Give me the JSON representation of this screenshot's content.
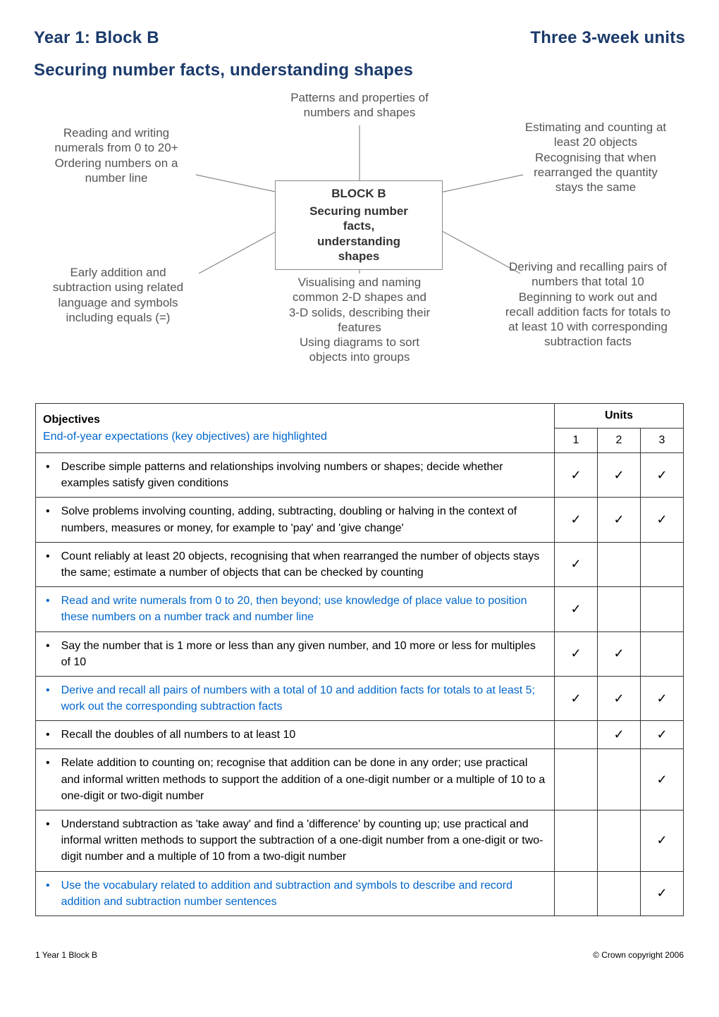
{
  "header": {
    "left": "Year 1: Block B",
    "right": "Three 3-week units"
  },
  "subtitle": "Securing number facts, understanding shapes",
  "diagram": {
    "top": "Patterns and properties of\nnumbers and shapes",
    "center_title": "BLOCK B",
    "center_sub": "Securing number facts,\nunderstanding shapes",
    "left_top": "Reading and writing\nnumerals from 0 to 20+\nOrdering numbers on a\nnumber line",
    "right_top": "Estimating and counting at\nleast 20 objects\nRecognising that when\nrearranged the quantity\nstays the same",
    "left_bottom": "Early addition and\nsubtraction using related\nlanguage and symbols\nincluding equals (=)",
    "center_bottom": "Visualising and naming\ncommon 2-D shapes and\n3-D solids, describing their\nfeatures\nUsing diagrams to sort\nobjects into groups",
    "right_bottom": "Deriving and recalling pairs of\nnumbers that total 10\nBeginning to work out and\nrecall addition facts for totals to\nat least 10 with corresponding\nsubtraction facts"
  },
  "table": {
    "head_objectives": "Objectives",
    "head_units": "Units",
    "key_row": "End-of-year expectations (key objectives) are highlighted",
    "unit_labels": [
      "1",
      "2",
      "3"
    ],
    "rows": [
      {
        "text": "Describe simple patterns and relationships involving numbers or shapes; decide whether examples satisfy given conditions",
        "blue": false,
        "checks": [
          true,
          true,
          true
        ]
      },
      {
        "text": "Solve problems involving counting, adding, subtracting, doubling or halving in the context of numbers, measures or money, for example to 'pay' and 'give change'",
        "blue": false,
        "checks": [
          true,
          true,
          true
        ]
      },
      {
        "text": "Count reliably at least 20 objects, recognising that when rearranged the number of objects stays the same; estimate a number of objects that can be checked by counting",
        "blue": false,
        "checks": [
          true,
          false,
          false
        ]
      },
      {
        "text": "Read and write numerals from 0 to 20, then beyond; use knowledge of place value to position these numbers on a number track and number line",
        "blue": true,
        "checks": [
          true,
          false,
          false
        ]
      },
      {
        "text": "Say the number that is 1 more or less than any given number, and 10 more or less for multiples of 10",
        "blue": false,
        "checks": [
          true,
          true,
          false
        ]
      },
      {
        "text": "Derive and recall all pairs of numbers with a total of 10 and addition facts for totals to at least 5; work out the corresponding subtraction facts",
        "blue": true,
        "checks": [
          true,
          true,
          true
        ]
      },
      {
        "text": "Recall the doubles of all numbers to at least 10",
        "blue": false,
        "checks": [
          false,
          true,
          true
        ]
      },
      {
        "text": "Relate addition to counting on; recognise that addition can be done in any order; use practical and informal written methods to support the addition of a one-digit number or a multiple of 10 to a one-digit or two-digit number",
        "blue": false,
        "checks": [
          false,
          false,
          true
        ]
      },
      {
        "text": "Understand subtraction as 'take away' and find a 'difference' by counting up; use practical and informal written methods to support the subtraction of a one-digit number from a one-digit or two-digit number and a multiple of 10 from a two-digit number",
        "blue": false,
        "checks": [
          false,
          false,
          true
        ]
      },
      {
        "text": "Use the vocabulary related to addition and subtraction and symbols to describe and record addition and subtraction number sentences",
        "blue": true,
        "checks": [
          false,
          false,
          true
        ]
      }
    ]
  },
  "footer": {
    "left": "1  Year 1 Block B",
    "right": "© Crown copyright 2006"
  },
  "colors": {
    "heading_blue": "#1b3a6b",
    "link_blue": "#0066cc",
    "diagram_text": "#555555",
    "border": "#333333"
  }
}
